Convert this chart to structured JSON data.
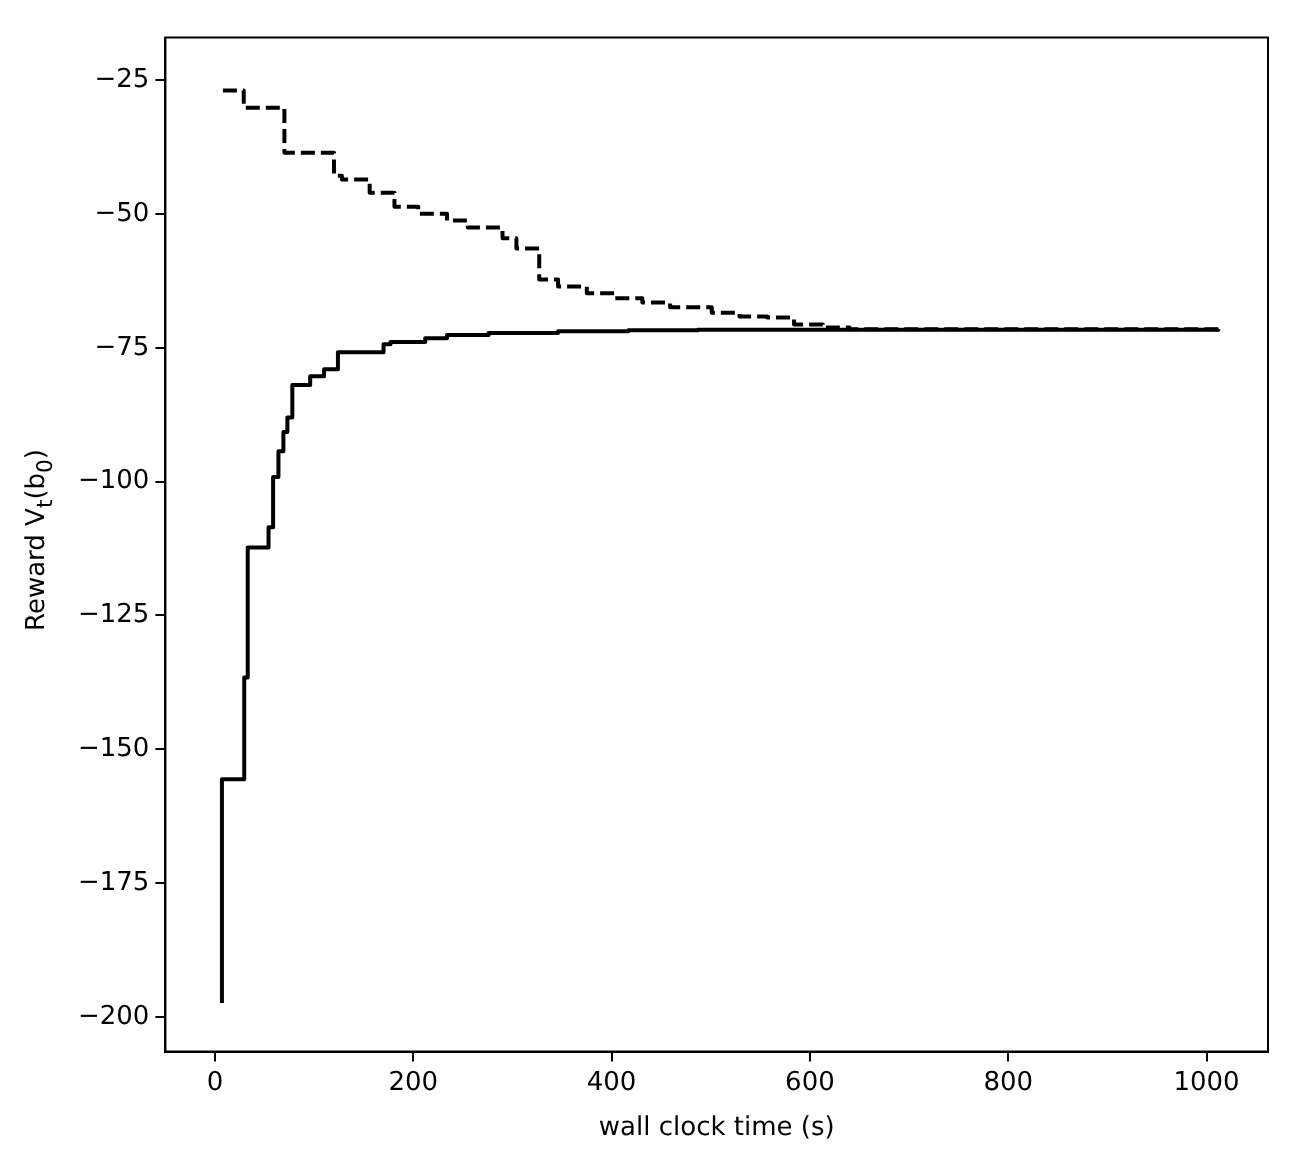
{
  "chart_data": {
    "type": "step",
    "xlabel": "wall clock time (s)",
    "ylabel": "Reward V$_{t}$(b$_{0}$)",
    "xlim": [
      -50,
      1062
    ],
    "xticks": [
      0,
      200,
      400,
      600,
      800,
      1000
    ],
    "ylim": [
      -206.5,
      -17
    ],
    "yticks": [
      -200,
      -175,
      -150,
      -125,
      -100,
      -75,
      -50,
      -25
    ],
    "series": [
      {
        "color": "#000000",
        "line_style": "dashed",
        "x": [
          8,
          29,
          70,
          120,
          128,
          156,
          181,
          205,
          234,
          255,
          290,
          304,
          327,
          346,
          375,
          403,
          431,
          459,
          501,
          529,
          557,
          584,
          613,
          640,
          1012
        ],
        "values": [
          -26.9,
          -30.1,
          -38.5,
          -42.8,
          -43.5,
          -46,
          -48.6,
          -49.9,
          -51.2,
          -52.5,
          -54.5,
          -56.4,
          -62.2,
          -63.5,
          -64.8,
          -65.7,
          -66.5,
          -67.4,
          -68.4,
          -69.1,
          -69.3,
          -70.6,
          -71.2,
          -71.5,
          -71.5
        ]
      },
      {
        "color": "#000000",
        "line_style": "solid",
        "x": [
          7,
          7,
          29.5,
          33,
          54,
          58.6,
          64,
          69,
          73,
          78,
          96,
          110,
          124,
          170,
          177,
          212,
          234,
          276,
          346,
          417,
          487,
          1012
        ],
        "values": [
          -197.4,
          -155.6,
          -136.6,
          -112.3,
          -108.5,
          -99.1,
          -94.3,
          -90.7,
          -88,
          -81.9,
          -80.3,
          -79,
          -75.8,
          -74.3,
          -73.9,
          -73.2,
          -72.6,
          -72.2,
          -71.9,
          -71.7,
          -71.6,
          -71.5
        ]
      }
    ]
  }
}
